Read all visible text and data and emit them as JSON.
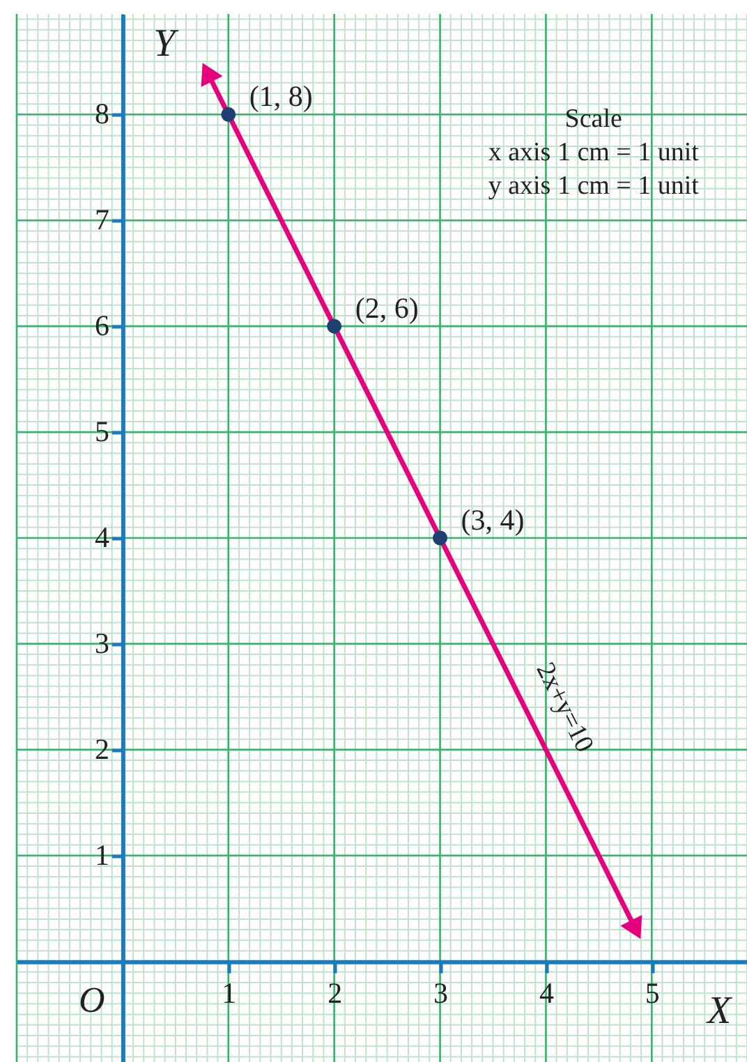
{
  "chart_data": {
    "type": "line",
    "xlabel": "X",
    "ylabel": "Y",
    "xlim": [
      -1.0,
      5.9
    ],
    "ylim": [
      -0.95,
      8.95
    ],
    "xticks": [
      1,
      2,
      3,
      4,
      5
    ],
    "yticks": [
      1,
      2,
      3,
      4,
      5,
      6,
      7,
      8
    ],
    "grid": true,
    "series": [
      {
        "color": "#e6007e",
        "x": [
          0.8,
          4.85
        ],
        "values": [
          8.4,
          0.3
        ],
        "line_style": "solid",
        "marker": "triangle"
      },
      {
        "type": "scatter",
        "color": "#1f3f73",
        "x": [
          1,
          2,
          3
        ],
        "values": [
          8,
          6,
          4
        ],
        "marker": "circle"
      }
    ],
    "annotations": [
      {
        "text": "(1, 8)",
        "x": 1,
        "y": 8
      },
      {
        "text": "(2, 6)",
        "x": 2,
        "y": 6
      },
      {
        "text": "(3, 4)",
        "x": 3,
        "y": 4
      },
      "2x+y=10",
      "O",
      "Scale",
      "x axis 1 cm = 1 unit",
      "y axis 1 cm = 1 unit"
    ]
  }
}
